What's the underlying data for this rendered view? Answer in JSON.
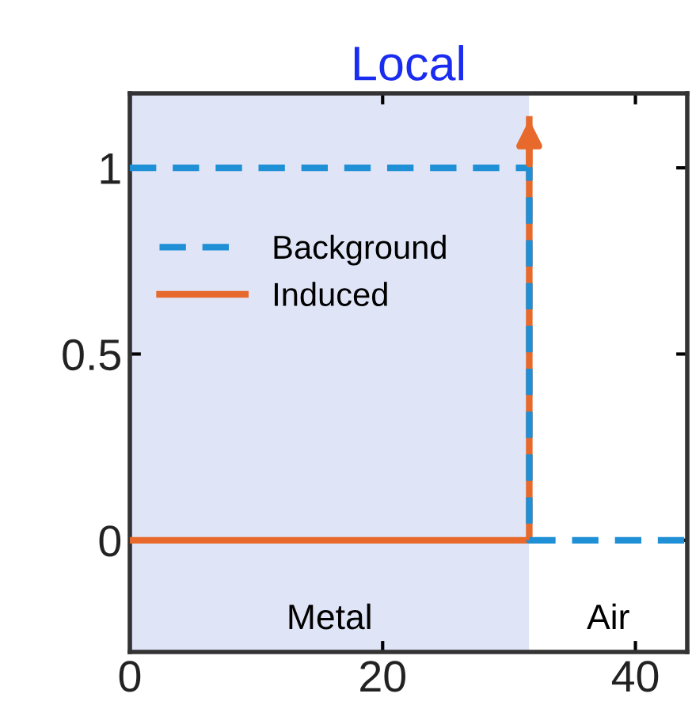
{
  "chart_data": {
    "type": "line",
    "title": "Local",
    "series": [
      {
        "name": "Background",
        "color": "#1f8fd6",
        "line_style": "dashed",
        "x": [
          0,
          31.6,
          31.6,
          44.1
        ],
        "values": [
          1,
          1,
          0,
          0
        ]
      },
      {
        "name": "Induced",
        "color": "#e8692c",
        "line_style": "solid",
        "x": [
          0,
          31.6,
          31.6
        ],
        "values": [
          0,
          0,
          1.13
        ]
      }
    ],
    "bands": [
      {
        "axis": "x",
        "from": 0,
        "to": 31.6,
        "label": "Metal",
        "color": "#dfe5f7"
      },
      {
        "axis": "x",
        "from": 31.6,
        "to": 44.1,
        "label": "Air",
        "color": "#ffffff"
      }
    ],
    "xlim": [
      0,
      44.1
    ],
    "xticks": [
      0,
      20,
      40
    ],
    "ylim": [
      -0.3,
      1.2
    ],
    "yticks": [
      0,
      0.5,
      1
    ],
    "grid": false,
    "legend": "top left",
    "marker": "none"
  }
}
